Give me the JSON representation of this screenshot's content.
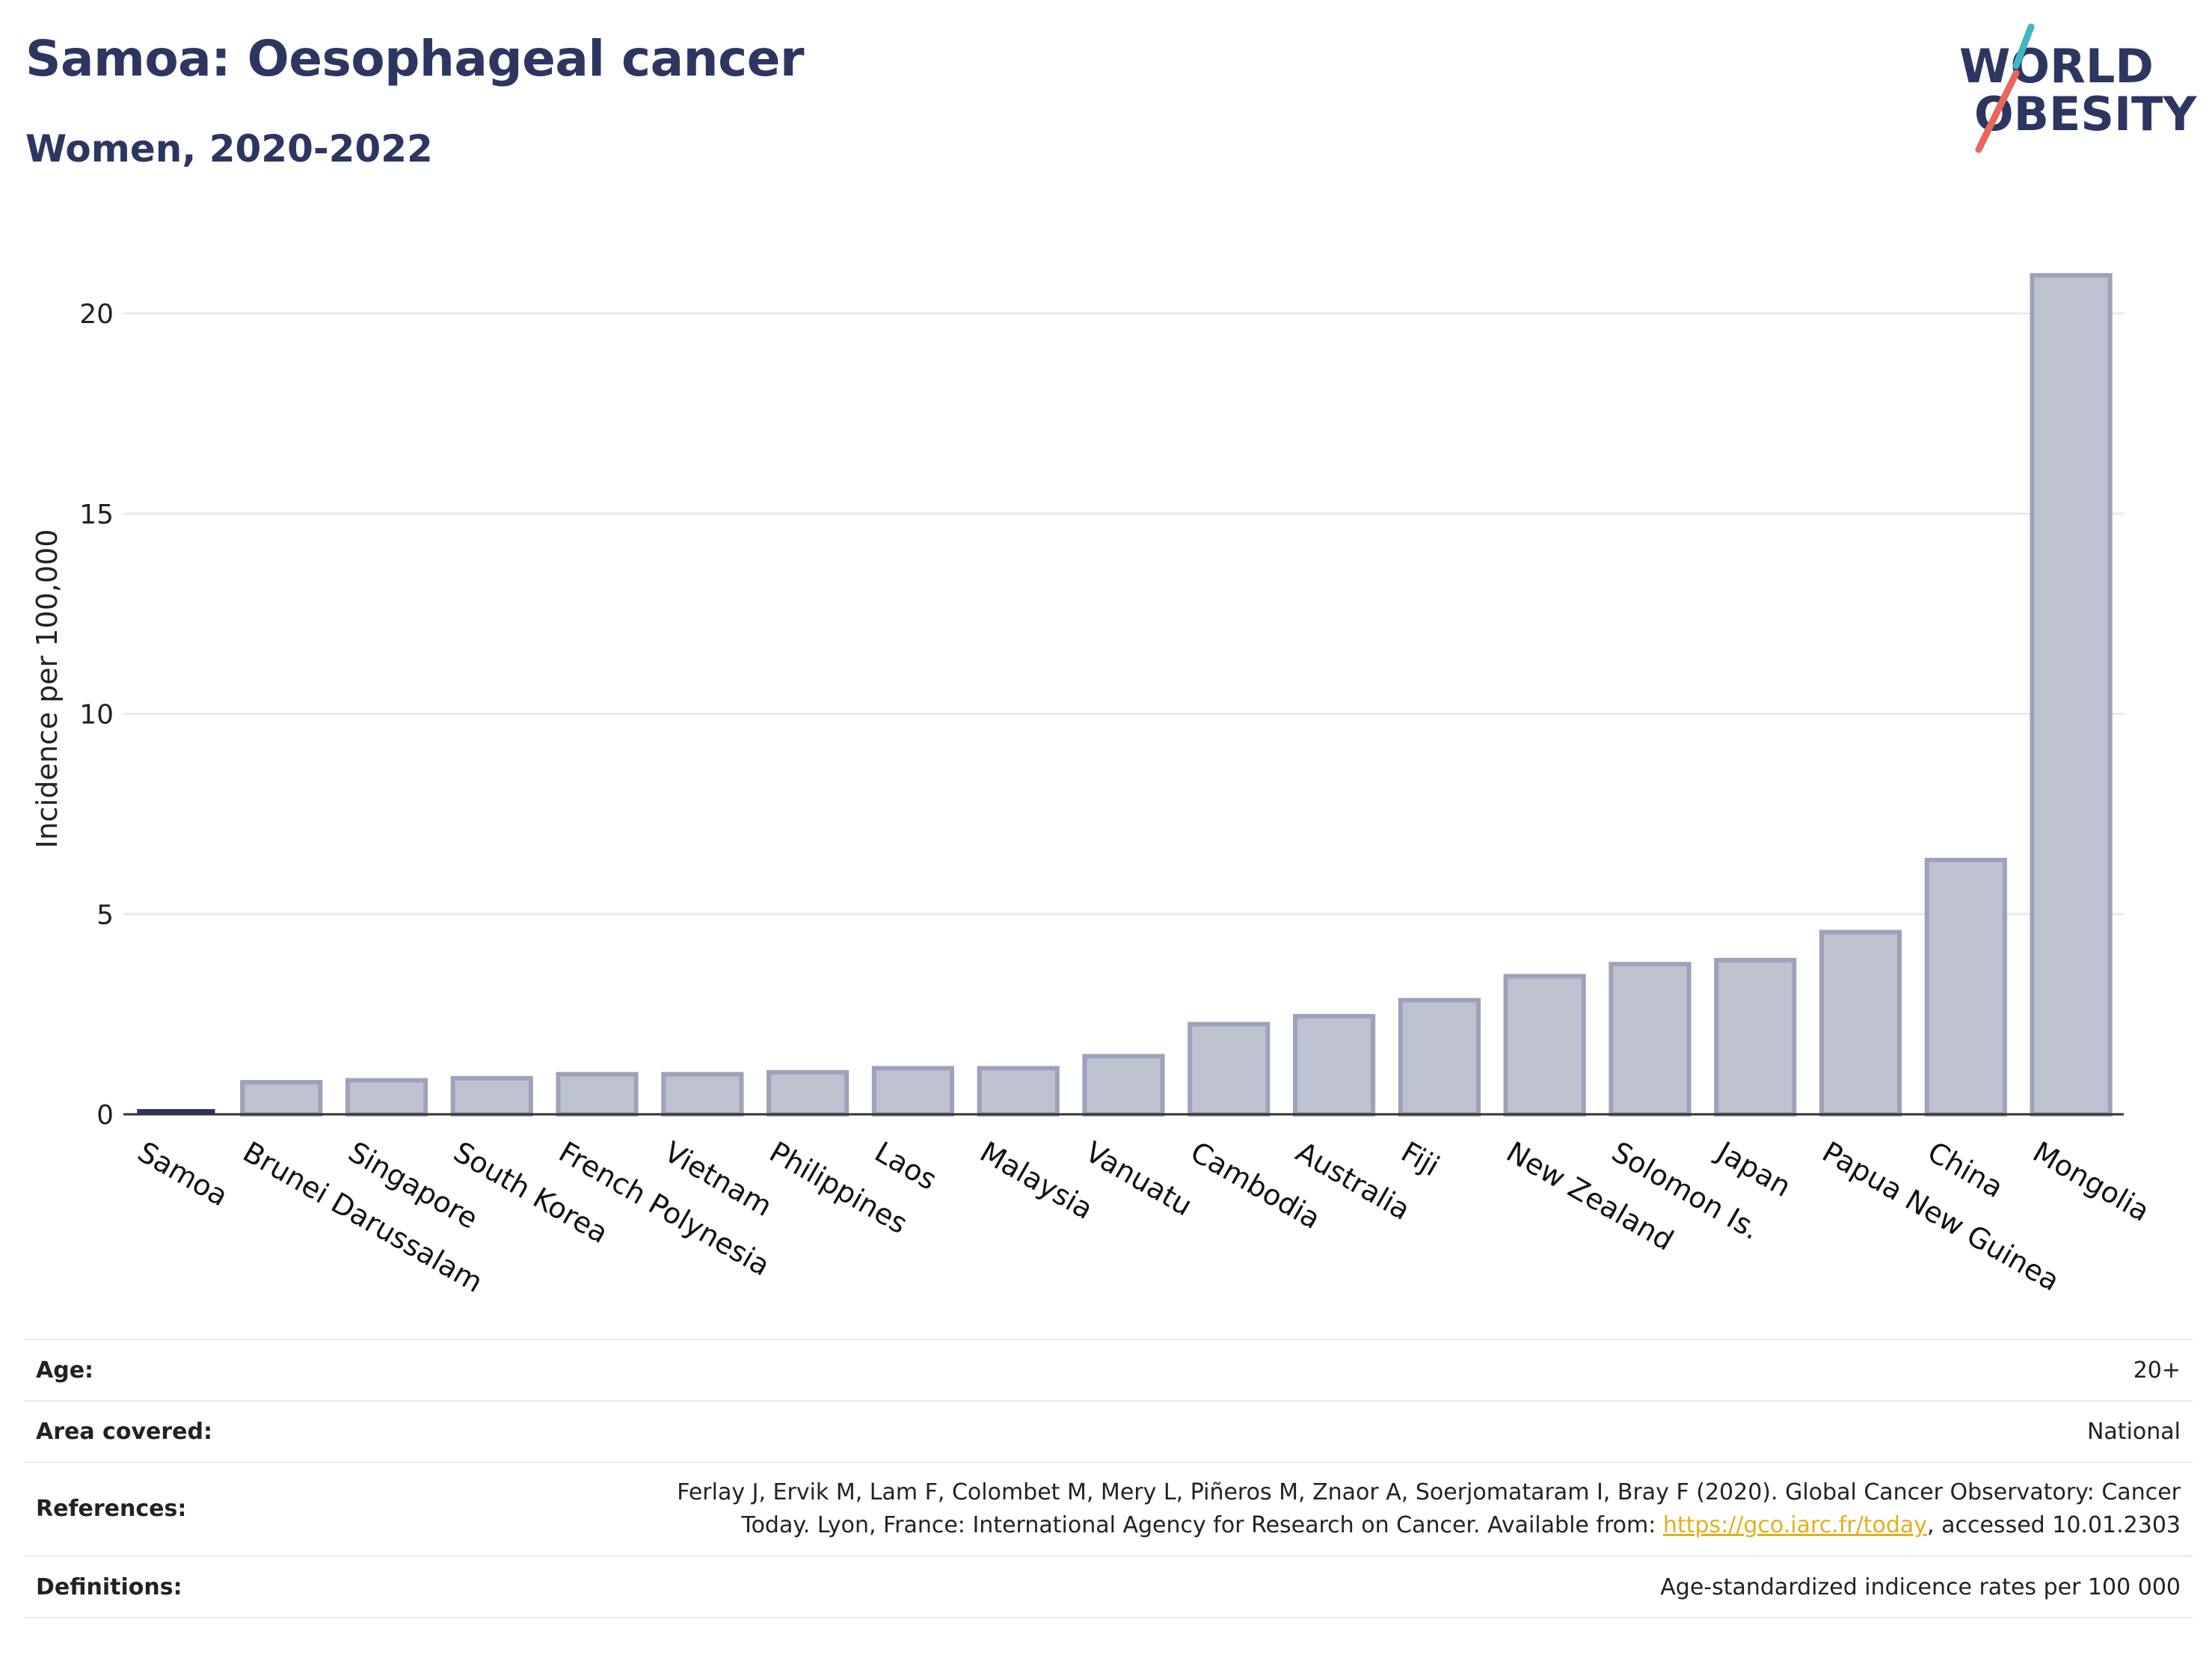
{
  "title": "Samoa: Oesophageal cancer",
  "subtitle": "Women, 2020-2022",
  "logo": {
    "line1": "WORLD",
    "line2": "OBESITY"
  },
  "chart_data": {
    "type": "bar",
    "ylabel": "Incidence per 100,000",
    "xlabel": "",
    "ylim": [
      0,
      22
    ],
    "yticks": [
      0,
      5,
      10,
      15,
      20
    ],
    "grid": true,
    "highlight": "Samoa",
    "highlight_color": "#2d3561",
    "bar_fill": "#bec1d0",
    "bar_stroke": "#9da2ba",
    "categories": [
      "Samoa",
      "Brunei Darussalam",
      "Singapore",
      "South Korea",
      "French Polynesia",
      "Vietnam",
      "Philippines",
      "Laos",
      "Malaysia",
      "Vanuatu",
      "Cambodia",
      "Australia",
      "Fiji",
      "New Zealand",
      "Solomon Is.",
      "Japan",
      "Papua New Guinea",
      "China",
      "Mongolia"
    ],
    "values": [
      0.0,
      0.8,
      0.85,
      0.9,
      1.0,
      1.0,
      1.05,
      1.15,
      1.15,
      1.45,
      2.25,
      2.45,
      2.85,
      3.45,
      3.75,
      3.85,
      4.55,
      6.35,
      20.95
    ]
  },
  "info": {
    "age_label": "Age:",
    "age_value": "20+",
    "area_label": "Area covered:",
    "area_value": "National",
    "references_label": "References:",
    "references_line1": "Ferlay J, Ervik M, Lam F, Colombet M, Mery L, Piñeros M, Znaor A, Soerjomataram I, Bray F (2020). Global Cancer Observatory: Cancer",
    "references_line2_pre": "Today. Lyon, France: International Agency for Research on Cancer. Available from: ",
    "references_link": "https://gco.iarc.fr/today",
    "references_line2_post": ", accessed 10.01.2303",
    "definitions_label": "Definitions:",
    "definitions_value": "Age-standardized indicence rates per 100 000"
  }
}
